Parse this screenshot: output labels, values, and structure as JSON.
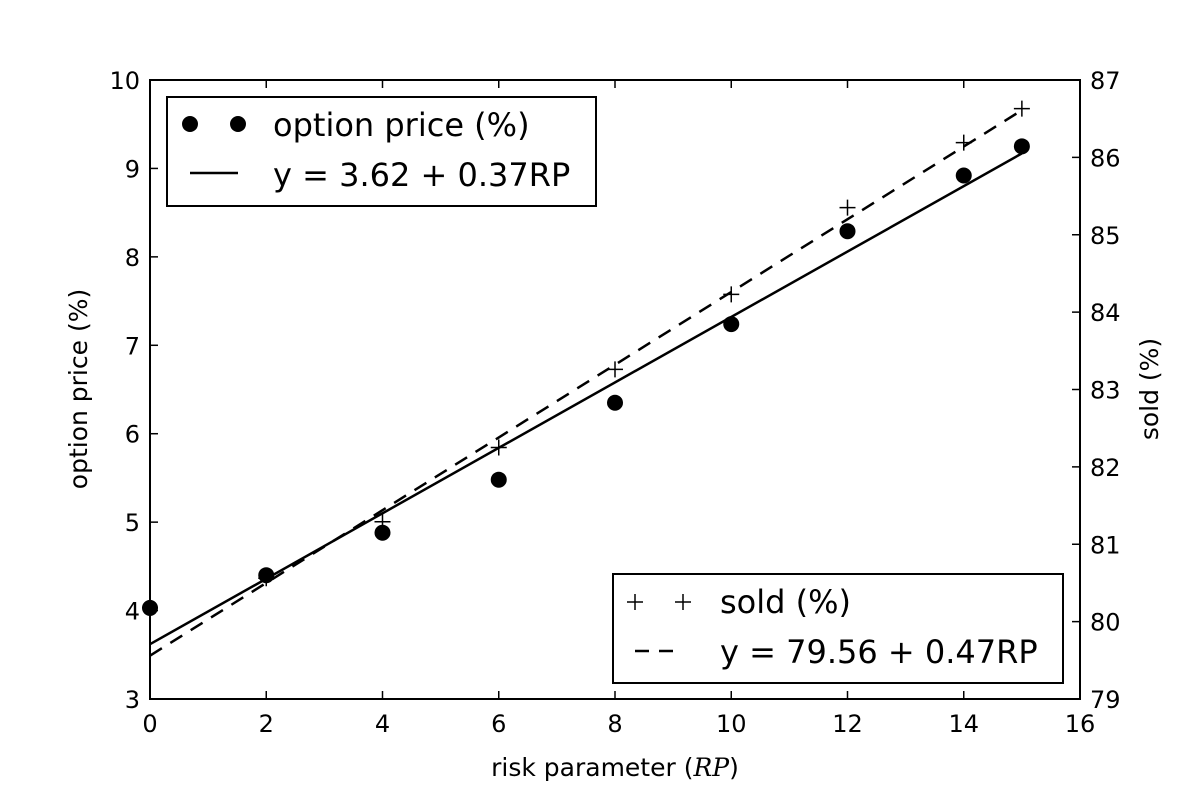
{
  "chart_data": {
    "type": "scatter",
    "xlabel_prefix": "risk parameter (",
    "xlabel_math": "RP",
    "xlabel_suffix": ")",
    "ylabel_left": "option price (%)",
    "ylabel_right": "sold (%)",
    "xlim": [
      0,
      16
    ],
    "ylim_left": [
      3,
      10
    ],
    "ylim_right": [
      79,
      87
    ],
    "x_ticks": [
      "0",
      "2",
      "4",
      "6",
      "8",
      "10",
      "12",
      "14",
      "16"
    ],
    "y_left_ticks": [
      "3",
      "4",
      "5",
      "6",
      "7",
      "8",
      "9",
      "10"
    ],
    "y_right_ticks": [
      "79",
      "80",
      "81",
      "82",
      "83",
      "84",
      "85",
      "86",
      "87"
    ],
    "grid": false,
    "series": [
      {
        "name": "option price (%)",
        "axis": "left",
        "marker": "filled-circle",
        "x": [
          0,
          2,
          4,
          6,
          8,
          10,
          12,
          14,
          15
        ],
        "y": [
          4.03,
          4.4,
          4.88,
          5.48,
          6.35,
          7.24,
          8.29,
          8.92,
          9.25
        ]
      },
      {
        "name": "sold (%)",
        "axis": "right",
        "marker": "plus",
        "x": [
          0,
          2,
          4,
          6,
          8,
          10,
          12,
          14,
          15
        ],
        "y": [
          80.18,
          80.56,
          81.29,
          82.25,
          83.26,
          84.23,
          85.35,
          86.19,
          86.63
        ]
      }
    ],
    "fits": [
      {
        "name": "y = 3.62 + 0.37RP",
        "axis": "left",
        "style": "solid",
        "intercept": 3.62,
        "slope": 0.37,
        "x_range": [
          0,
          15
        ]
      },
      {
        "name": "y = 79.56 + 0.47RP",
        "axis": "right",
        "style": "dashed",
        "intercept": 79.56,
        "slope": 0.47,
        "x_range": [
          0,
          15
        ]
      }
    ],
    "legends": [
      {
        "placement": "top-left",
        "entries": [
          "option price (%)",
          "y = 3.62 + 0.37RP"
        ]
      },
      {
        "placement": "bottom-right",
        "entries": [
          "sold (%)",
          "y = 79.56 + 0.47RP"
        ]
      }
    ]
  }
}
